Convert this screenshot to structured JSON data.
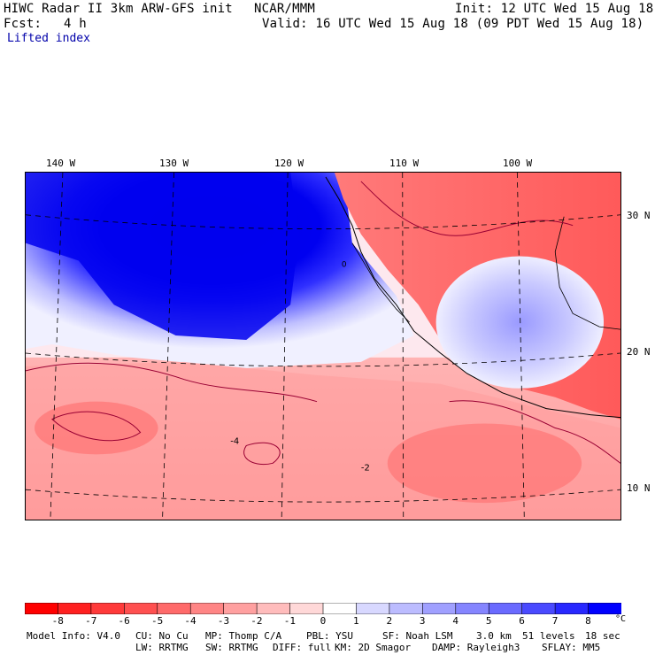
{
  "header": {
    "title": "HIWC Radar II 3km ARW-GFS init",
    "org": "NCAR/MMM",
    "init": "Init: 12 UTC Wed 15 Aug 18",
    "fcst_label": "Fcst:",
    "fcst_value": "4 h",
    "valid": "Valid: 16 UTC Wed 15 Aug 18 (09 PDT Wed 15 Aug 18)",
    "field": "Lifted index"
  },
  "map": {
    "lon_labels": [
      "140 W",
      "130 W",
      "120 W",
      "110 W",
      "100 W"
    ],
    "lat_labels": [
      "30 N",
      "20 N",
      "10 N"
    ],
    "contour_labels": [
      "0",
      "-4",
      "-2"
    ]
  },
  "colorbar": {
    "ticks": [
      "-8",
      "-7",
      "-6",
      "-5",
      "-4",
      "-3",
      "-2",
      "-1",
      "0",
      "1",
      "2",
      "3",
      "4",
      "5",
      "6",
      "7",
      "8"
    ],
    "unit": "°C",
    "colors": [
      "#ff0000",
      "#ff2020",
      "#ff3a3a",
      "#ff5050",
      "#ff6a6a",
      "#ff8585",
      "#ffa0a0",
      "#ffbcbc",
      "#ffd8d8",
      "#ffffff",
      "#d8d8ff",
      "#bcbcff",
      "#a0a0ff",
      "#8585ff",
      "#6a6aff",
      "#4a4aff",
      "#2828ff",
      "#0000ff"
    ]
  },
  "footer": {
    "line1": [
      "Model Info: V4.0",
      "CU: No Cu",
      "MP: Thomp C/A",
      "PBL: YSU",
      "SF: Noah LSM",
      "3.0 km",
      "51 levels",
      "18 sec"
    ],
    "line2": [
      "LW: RRTMG",
      "SW: RRTMG",
      "DIFF: full",
      "KM: 2D Smagor",
      "DAMP: Rayleigh3",
      "SFLAY: MM5"
    ]
  }
}
